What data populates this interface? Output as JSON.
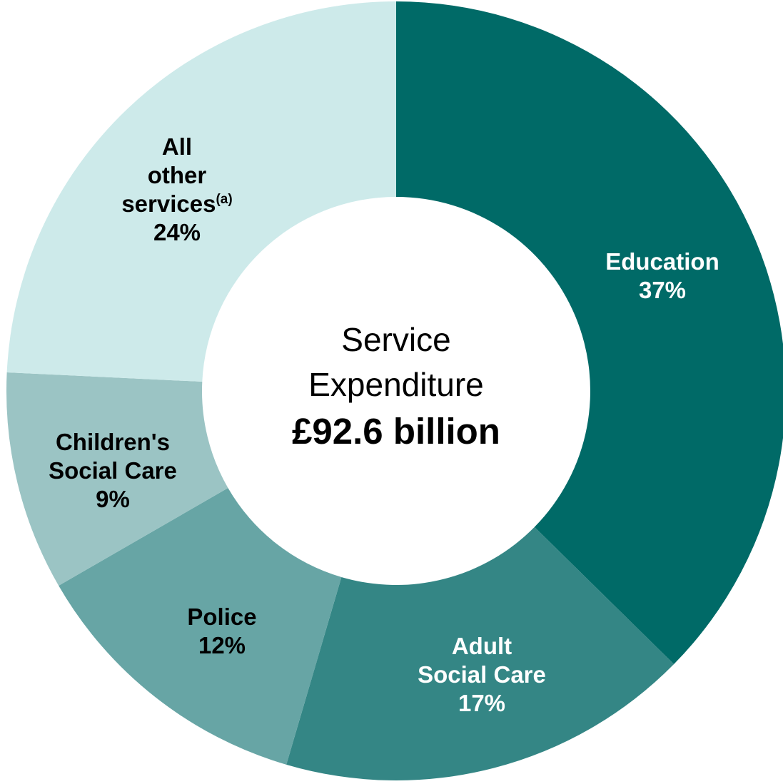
{
  "chart_data": {
    "type": "pie",
    "donut": true,
    "center": {
      "line1": "Service",
      "line2": "Expenditure",
      "total": "£92.6 billion"
    },
    "slices": [
      {
        "label_lines": [
          "Education"
        ],
        "value": 37,
        "value_label": "37%",
        "color": "#006a67",
        "text_color": "#ffffff"
      },
      {
        "label_lines": [
          "Adult",
          "Social Care"
        ],
        "value": 17,
        "value_label": "17%",
        "color": "#348685",
        "text_color": "#ffffff"
      },
      {
        "label_lines": [
          "Police"
        ],
        "value": 12,
        "value_label": "12%",
        "color": "#67a5a5",
        "text_color": "#000000"
      },
      {
        "label_lines": [
          "Children's",
          "Social Care"
        ],
        "value": 9,
        "value_label": "9%",
        "color": "#9bc4c4",
        "text_color": "#000000"
      },
      {
        "label_lines": [
          "All",
          "other",
          "services"
        ],
        "superscript": "(a)",
        "value": 24,
        "value_label": "24%",
        "color": "#cdeaea",
        "text_color": "#000000"
      }
    ]
  }
}
